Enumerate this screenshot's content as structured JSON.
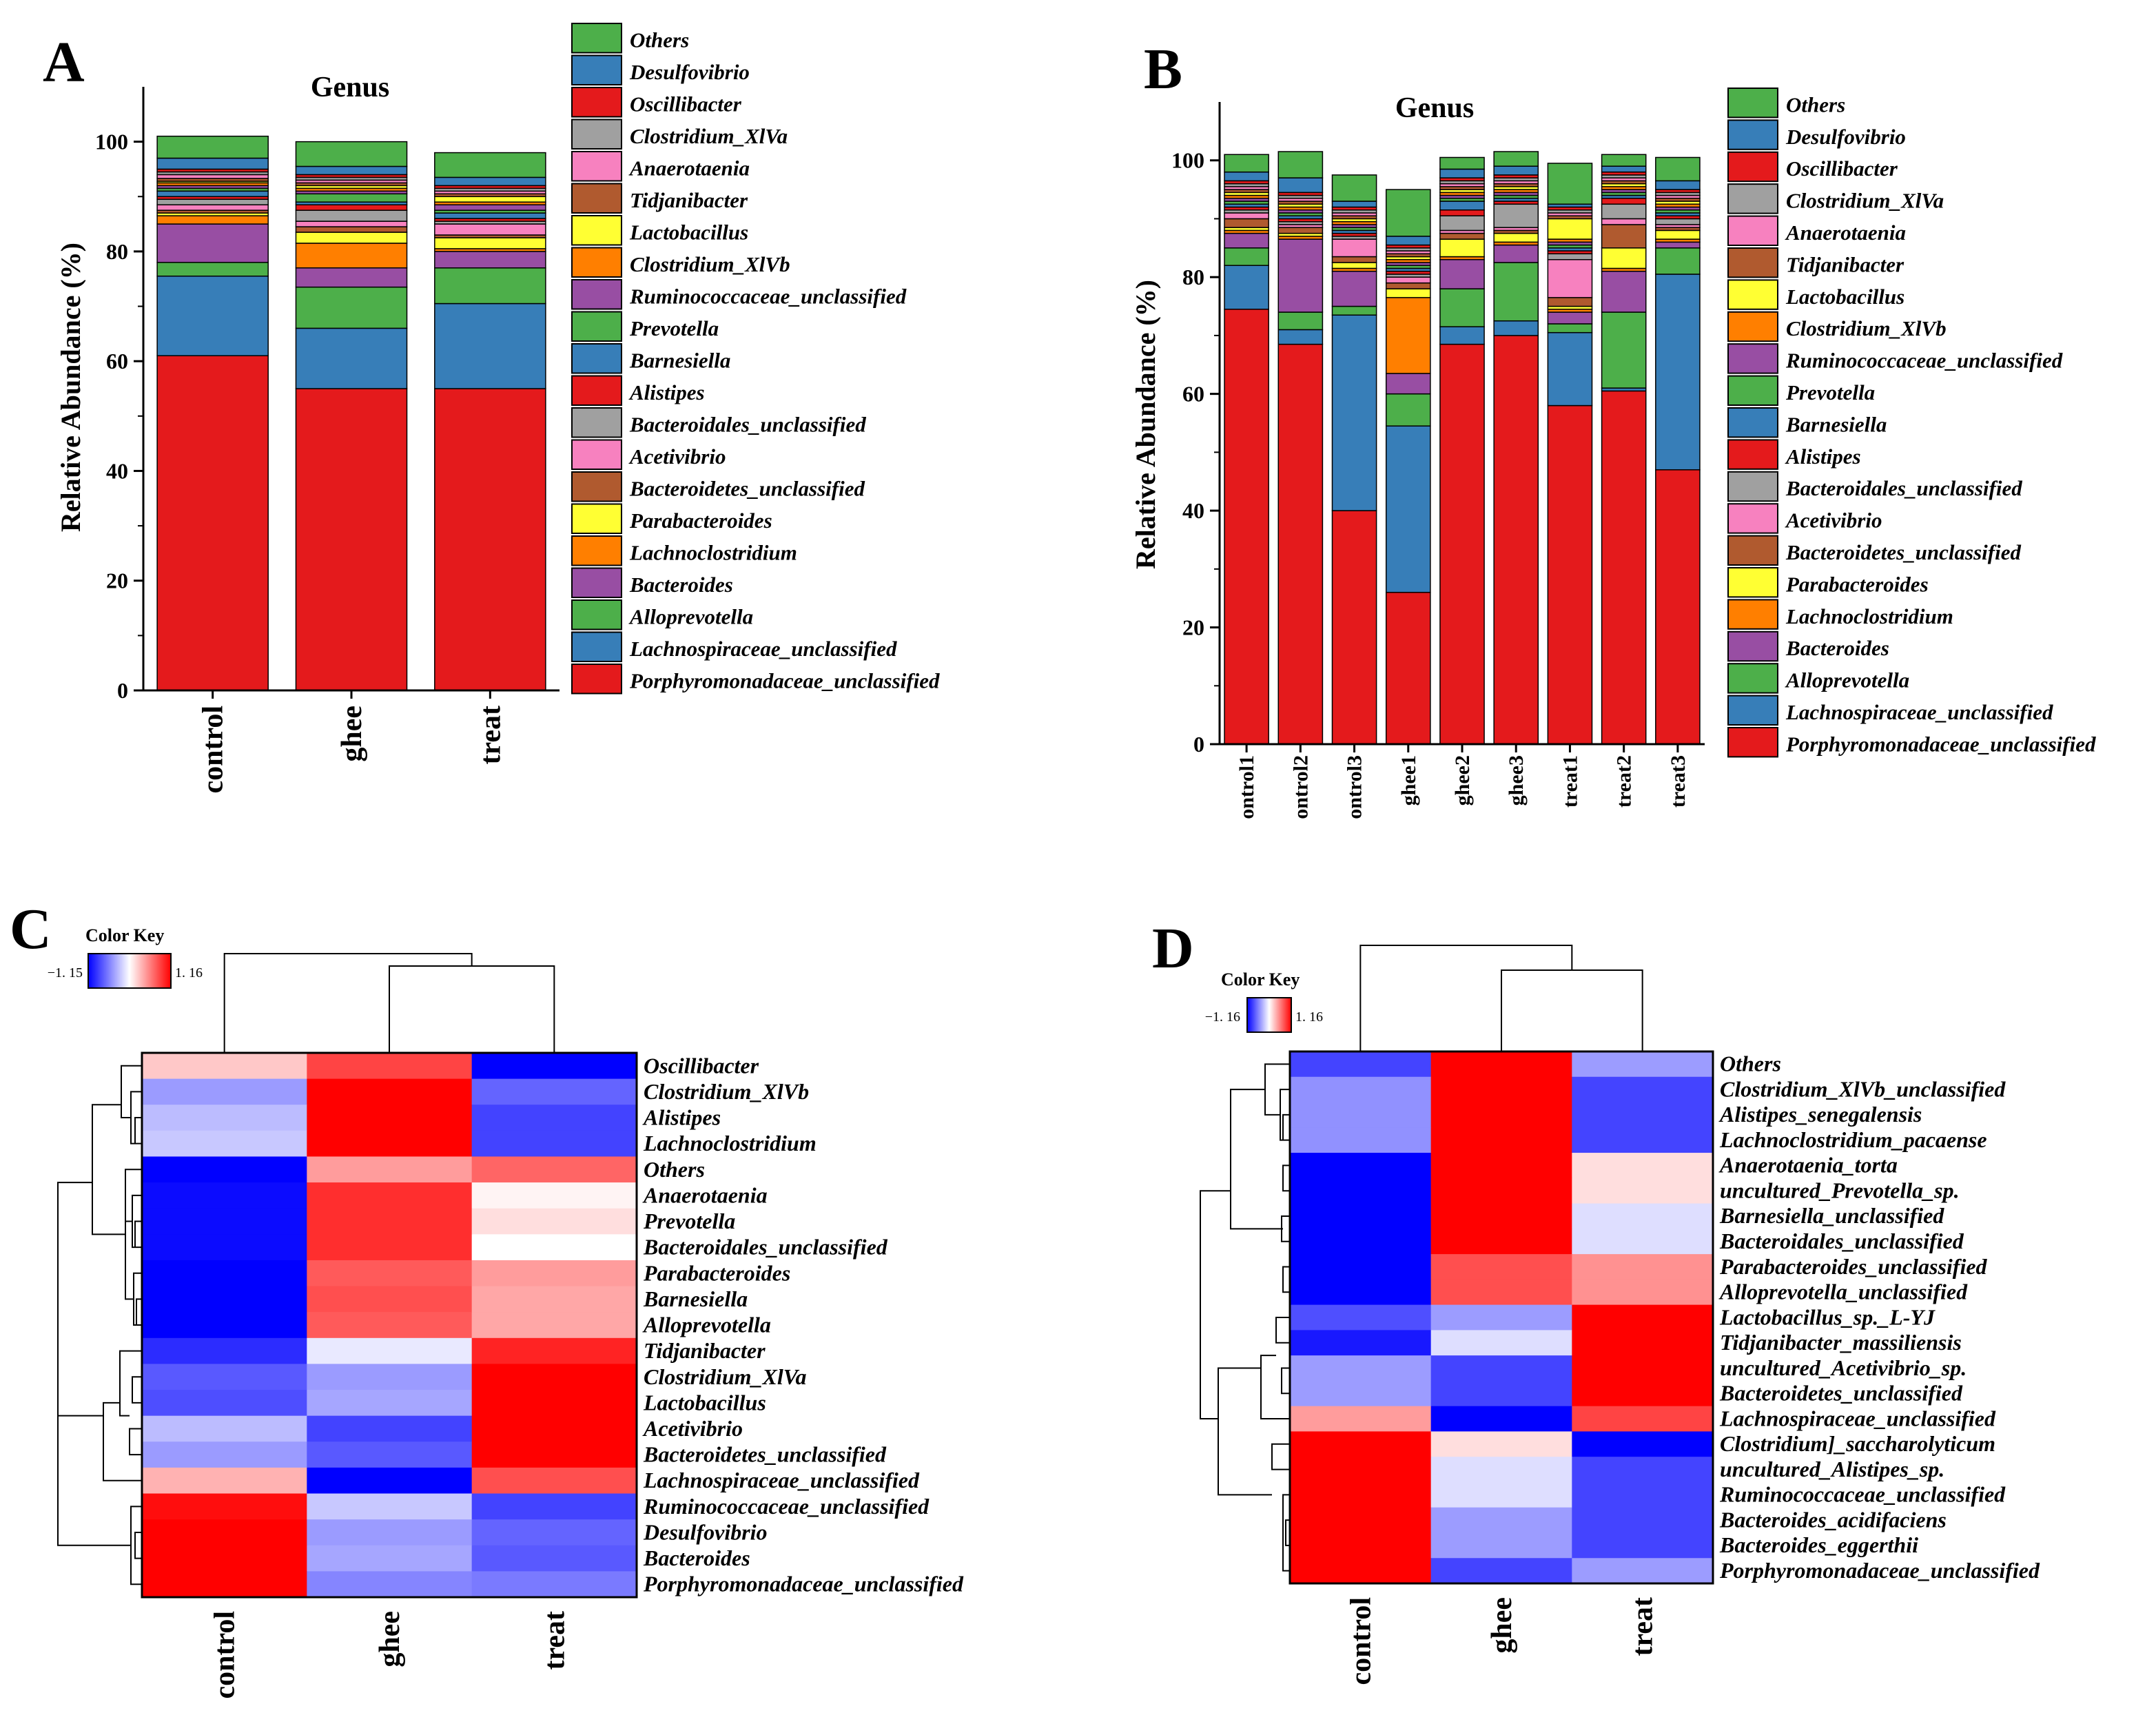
{
  "figure": {
    "panels": [
      "A",
      "B",
      "C",
      "D"
    ]
  },
  "legend_genus": [
    {
      "name": "Others",
      "color": "#4daf4a"
    },
    {
      "name": "Desulfovibrio",
      "color": "#377eb8"
    },
    {
      "name": "Oscillibacter",
      "color": "#e41a1c"
    },
    {
      "name": "Clostridium_XlVa",
      "color": "#a0a0a0"
    },
    {
      "name": "Anaerotaenia",
      "color": "#f781bf"
    },
    {
      "name": "Tidjanibacter",
      "color": "#b05a2f"
    },
    {
      "name": "Lactobacillus",
      "color": "#ffff33"
    },
    {
      "name": "Clostridium_XlVb",
      "color": "#ff7f00"
    },
    {
      "name": "Ruminococcaceae_unclassified",
      "color": "#984ea3"
    },
    {
      "name": "Prevotella",
      "color": "#4daf4a"
    },
    {
      "name": "Barnesiella",
      "color": "#377eb8"
    },
    {
      "name": "Alistipes",
      "color": "#e41a1c"
    },
    {
      "name": "Bacteroidales_unclassified",
      "color": "#a0a0a0"
    },
    {
      "name": "Acetivibrio",
      "color": "#f781bf"
    },
    {
      "name": "Bacteroidetes_unclassified",
      "color": "#b05a2f"
    },
    {
      "name": "Parabacteroides",
      "color": "#ffff33"
    },
    {
      "name": "Lachnoclostridium",
      "color": "#ff7f00"
    },
    {
      "name": "Bacteroides",
      "color": "#984ea3"
    },
    {
      "name": "Alloprevotella",
      "color": "#4daf4a"
    },
    {
      "name": "Lachnospiraceae_unclassified",
      "color": "#377eb8"
    },
    {
      "name": "Porphyromonadaceae_unclassified",
      "color": "#e41a1c"
    }
  ],
  "chart_data": [
    {
      "panel": "A",
      "type": "bar",
      "stacked": true,
      "title": "Genus",
      "ylabel": "Relative Abundance (%)",
      "ylim": [
        0,
        110
      ],
      "yticks": [
        0,
        20,
        40,
        60,
        80,
        100
      ],
      "categories": [
        "control",
        "ghee",
        "treat"
      ],
      "series": [
        {
          "name": "Porphyromonadaceae_unclassified",
          "values": [
            61.0,
            55.0,
            55.0
          ]
        },
        {
          "name": "Lachnospiraceae_unclassified",
          "values": [
            14.5,
            11.0,
            15.5
          ]
        },
        {
          "name": "Alloprevotella",
          "values": [
            2.5,
            7.5,
            6.5
          ]
        },
        {
          "name": "Bacteroides",
          "values": [
            7.0,
            3.5,
            3.0
          ]
        },
        {
          "name": "Lachnoclostridium",
          "values": [
            1.5,
            4.5,
            0.5
          ]
        },
        {
          "name": "Parabacteroides",
          "values": [
            0.5,
            2.0,
            2.0
          ]
        },
        {
          "name": "Bacteroidetes_unclassified",
          "values": [
            0.5,
            1.0,
            0.5
          ]
        },
        {
          "name": "Acetivibrio",
          "values": [
            1.0,
            1.0,
            2.0
          ]
        },
        {
          "name": "Bacteroidales_unclassified",
          "values": [
            1.0,
            2.0,
            0.5
          ]
        },
        {
          "name": "Alistipes",
          "values": [
            0.5,
            1.0,
            0.5
          ]
        },
        {
          "name": "Barnesiella",
          "values": [
            1.0,
            0.5,
            1.0
          ]
        },
        {
          "name": "Prevotella",
          "values": [
            0.5,
            1.5,
            0.5
          ]
        },
        {
          "name": "Ruminococcaceae_unclassified",
          "values": [
            0.5,
            0.5,
            1.0
          ]
        },
        {
          "name": "Clostridium_XlVb",
          "values": [
            0.5,
            0.5,
            0.5
          ]
        },
        {
          "name": "Lactobacillus",
          "values": [
            0.3,
            0.5,
            1.0
          ]
        },
        {
          "name": "Tidjanibacter",
          "values": [
            0.5,
            0.5,
            0.5
          ]
        },
        {
          "name": "Anaerotaenia",
          "values": [
            0.7,
            0.5,
            0.5
          ]
        },
        {
          "name": "Clostridium_XlVa",
          "values": [
            0.5,
            0.5,
            0.5
          ]
        },
        {
          "name": "Oscillibacter",
          "values": [
            0.5,
            0.5,
            0.5
          ]
        },
        {
          "name": "Desulfovibrio",
          "values": [
            2.0,
            1.5,
            1.5
          ]
        },
        {
          "name": "Others",
          "values": [
            4.0,
            4.5,
            4.5
          ]
        }
      ]
    },
    {
      "panel": "B",
      "type": "bar",
      "stacked": true,
      "title": "Genus",
      "ylabel": "Relative Abundance (%)",
      "ylim": [
        0,
        110
      ],
      "yticks": [
        0,
        20,
        40,
        60,
        80,
        100
      ],
      "categories": [
        "ontrol1",
        "ontrol2",
        "ontrol3",
        "ghee1",
        "ghee2",
        "ghee3",
        "treat1",
        "treat2",
        "treat3"
      ],
      "series": [
        {
          "name": "Porphyromonadaceae_unclassified",
          "values": [
            74.5,
            68.5,
            40.0,
            26.0,
            68.5,
            70.0,
            58.0,
            60.5,
            47.0
          ]
        },
        {
          "name": "Lachnospiraceae_unclassified",
          "values": [
            7.5,
            2.5,
            33.5,
            28.5,
            3.0,
            2.5,
            12.5,
            0.5,
            33.5
          ]
        },
        {
          "name": "Alloprevotella",
          "values": [
            3.0,
            3.0,
            1.5,
            5.5,
            6.5,
            10.0,
            1.5,
            13.0,
            4.5
          ]
        },
        {
          "name": "Bacteroides",
          "values": [
            2.5,
            12.5,
            6.0,
            3.5,
            5.0,
            3.0,
            2.0,
            7.0,
            1.0
          ]
        },
        {
          "name": "Lachnoclostridium",
          "values": [
            0.5,
            0.5,
            0.5,
            13.0,
            0.5,
            0.5,
            0.5,
            0.5,
            0.5
          ]
        },
        {
          "name": "Parabacteroides",
          "values": [
            0.5,
            0.5,
            1.0,
            1.5,
            3.0,
            1.5,
            0.5,
            3.5,
            1.5
          ]
        },
        {
          "name": "Bacteroidetes_unclassified",
          "values": [
            1.5,
            1.0,
            1.0,
            1.0,
            1.0,
            0.5,
            1.5,
            4.0,
            0.5
          ]
        },
        {
          "name": "Acetivibrio",
          "values": [
            1.0,
            0.5,
            3.0,
            1.0,
            0.5,
            0.5,
            6.5,
            1.0,
            0.5
          ]
        },
        {
          "name": "Bacteroidales_unclassified",
          "values": [
            0.5,
            0.5,
            0.5,
            0.5,
            2.5,
            4.0,
            1.0,
            2.5,
            1.0
          ]
        },
        {
          "name": "Alistipes",
          "values": [
            0.5,
            0.5,
            0.5,
            0.5,
            1.0,
            0.5,
            0.5,
            1.0,
            0.5
          ]
        },
        {
          "name": "Barnesiella",
          "values": [
            0.5,
            0.5,
            0.5,
            0.5,
            1.5,
            0.5,
            0.5,
            0.5,
            0.5
          ]
        },
        {
          "name": "Prevotella",
          "values": [
            0.5,
            0.5,
            0.5,
            0.5,
            0.5,
            0.5,
            0.5,
            0.5,
            0.5
          ]
        },
        {
          "name": "Ruminococcaceae_unclassified",
          "values": [
            0.5,
            0.5,
            0.5,
            0.5,
            0.5,
            0.5,
            0.5,
            0.5,
            0.5
          ]
        },
        {
          "name": "Clostridium_XlVb",
          "values": [
            0.5,
            0.5,
            0.5,
            0.5,
            0.5,
            0.5,
            0.5,
            0.5,
            0.5
          ]
        },
        {
          "name": "Lactobacillus",
          "values": [
            0.5,
            0.5,
            0.5,
            0.5,
            0.5,
            0.5,
            3.5,
            0.5,
            0.5
          ]
        },
        {
          "name": "Tidjanibacter",
          "values": [
            0.5,
            0.5,
            0.5,
            0.5,
            0.5,
            0.5,
            0.5,
            0.5,
            0.5
          ]
        },
        {
          "name": "Anaerotaenia",
          "values": [
            0.5,
            0.5,
            0.5,
            0.5,
            0.5,
            0.5,
            0.5,
            0.5,
            0.5
          ]
        },
        {
          "name": "Clostridium_XlVa",
          "values": [
            0.5,
            0.5,
            0.5,
            0.5,
            0.5,
            0.5,
            0.5,
            0.5,
            0.5
          ]
        },
        {
          "name": "Oscillibacter",
          "values": [
            0.5,
            0.5,
            0.5,
            0.5,
            0.5,
            0.5,
            0.5,
            0.5,
            0.5
          ]
        },
        {
          "name": "Desulfovibrio",
          "values": [
            1.5,
            2.5,
            1.0,
            1.5,
            1.5,
            1.5,
            0.5,
            1.0,
            1.5
          ]
        },
        {
          "name": "Others",
          "values": [
            3.0,
            4.5,
            4.5,
            8.0,
            2.0,
            2.5,
            7.0,
            2.0,
            4.0
          ]
        }
      ]
    },
    {
      "panel": "C",
      "type": "heatmap",
      "colorkey": {
        "title": "Color Key",
        "min": -1.15,
        "max": 1.16,
        "min_label": "−1. 15",
        "max_label": "1. 16"
      },
      "columns": [
        "control",
        "ghee",
        "treat"
      ],
      "rows": [
        {
          "name": "Oscillibacter",
          "values": [
            0.25,
            0.85,
            -1.15
          ]
        },
        {
          "name": "Clostridium_XlVb",
          "values": [
            -0.45,
            1.16,
            -0.7
          ]
        },
        {
          "name": "Alistipes",
          "values": [
            -0.3,
            1.16,
            -0.85
          ]
        },
        {
          "name": "Lachnoclostridium",
          "values": [
            -0.25,
            1.16,
            -0.85
          ]
        },
        {
          "name": "Others",
          "values": [
            -1.15,
            0.45,
            0.7
          ]
        },
        {
          "name": "Anaerotaenia",
          "values": [
            -1.1,
            0.95,
            0.05
          ]
        },
        {
          "name": "Prevotella",
          "values": [
            -1.1,
            0.95,
            0.15
          ]
        },
        {
          "name": "Bacteroidales_unclassified",
          "values": [
            -1.1,
            0.95,
            0.0
          ]
        },
        {
          "name": "Parabacteroides",
          "values": [
            -1.15,
            0.75,
            0.45
          ]
        },
        {
          "name": "Barnesiella",
          "values": [
            -1.15,
            0.8,
            0.4
          ]
        },
        {
          "name": "Alloprevotella",
          "values": [
            -1.15,
            0.75,
            0.4
          ]
        },
        {
          "name": "Tidjanibacter",
          "values": [
            -0.95,
            -0.1,
            1.0
          ]
        },
        {
          "name": "Clostridium_XlVa",
          "values": [
            -0.75,
            -0.45,
            1.16
          ]
        },
        {
          "name": "Lactobacillus",
          "values": [
            -0.8,
            -0.4,
            1.16
          ]
        },
        {
          "name": "Acetivibrio",
          "values": [
            -0.3,
            -0.85,
            1.16
          ]
        },
        {
          "name": "Bacteroidetes_unclassified",
          "values": [
            -0.45,
            -0.75,
            1.16
          ]
        },
        {
          "name": "Lachnospiraceae_unclassified",
          "values": [
            0.35,
            -1.15,
            0.8
          ]
        },
        {
          "name": "Ruminococcaceae_unclassified",
          "values": [
            1.1,
            -0.25,
            -0.85
          ]
        },
        {
          "name": "Desulfovibrio",
          "values": [
            1.16,
            -0.45,
            -0.7
          ]
        },
        {
          "name": "Bacteroides",
          "values": [
            1.16,
            -0.4,
            -0.75
          ]
        },
        {
          "name": "Porphyromonadaceae_unclassified",
          "values": [
            1.16,
            -0.55,
            -0.6
          ]
        }
      ]
    },
    {
      "panel": "D",
      "type": "heatmap",
      "colorkey": {
        "title": "Color Key",
        "min": -1.16,
        "max": 1.16,
        "min_label": "−1. 16",
        "max_label": "1. 16"
      },
      "columns": [
        "control",
        "ghee",
        "treat"
      ],
      "rows": [
        {
          "name": "Others",
          "values": [
            -0.85,
            1.16,
            -0.45
          ]
        },
        {
          "name": "Clostridium_XlVb_unclassified",
          "values": [
            -0.5,
            1.16,
            -0.85
          ]
        },
        {
          "name": "Alistipes_senegalensis",
          "values": [
            -0.5,
            1.16,
            -0.85
          ]
        },
        {
          "name": "Lachnoclostridium_pacaense",
          "values": [
            -0.5,
            1.16,
            -0.85
          ]
        },
        {
          "name": "Anaerotaenia_torta",
          "values": [
            -1.16,
            1.16,
            0.15
          ]
        },
        {
          "name": "uncultured_Prevotella_sp.",
          "values": [
            -1.16,
            1.16,
            0.15
          ]
        },
        {
          "name": "Barnesiella_unclassified",
          "values": [
            -1.16,
            1.16,
            -0.15
          ]
        },
        {
          "name": "Bacteroidales_unclassified",
          "values": [
            -1.16,
            1.16,
            -0.15
          ]
        },
        {
          "name": "Parabacteroides_unclassified",
          "values": [
            -1.16,
            0.8,
            0.5
          ]
        },
        {
          "name": "Alloprevotella_unclassified",
          "values": [
            -1.16,
            0.8,
            0.5
          ]
        },
        {
          "name": "Lactobacillus_sp._L-YJ",
          "values": [
            -0.8,
            -0.45,
            1.16
          ]
        },
        {
          "name": "Tidjanibacter_massiliensis",
          "values": [
            -1.05,
            -0.15,
            1.16
          ]
        },
        {
          "name": "uncultured_Acetivibrio_sp.",
          "values": [
            -0.45,
            -0.85,
            1.16
          ]
        },
        {
          "name": "Bacteroidetes_unclassified",
          "values": [
            -0.45,
            -0.85,
            1.16
          ]
        },
        {
          "name": "Lachnospiraceae_unclassified",
          "values": [
            0.45,
            -1.16,
            0.85
          ]
        },
        {
          "name": "Clostridium]_saccharolyticum",
          "values": [
            1.16,
            0.15,
            -1.16
          ]
        },
        {
          "name": "uncultured_Alistipes_sp.",
          "values": [
            1.16,
            -0.15,
            -0.85
          ]
        },
        {
          "name": "Ruminococcaceae_unclassified",
          "values": [
            1.16,
            -0.15,
            -0.85
          ]
        },
        {
          "name": "Bacteroides_acidifaciens",
          "values": [
            1.16,
            -0.45,
            -0.85
          ]
        },
        {
          "name": "Bacteroides_eggerthii",
          "values": [
            1.16,
            -0.45,
            -0.85
          ]
        },
        {
          "name": "Porphyromonadaceae_unclassified",
          "values": [
            1.16,
            -0.85,
            -0.45
          ]
        }
      ]
    }
  ]
}
